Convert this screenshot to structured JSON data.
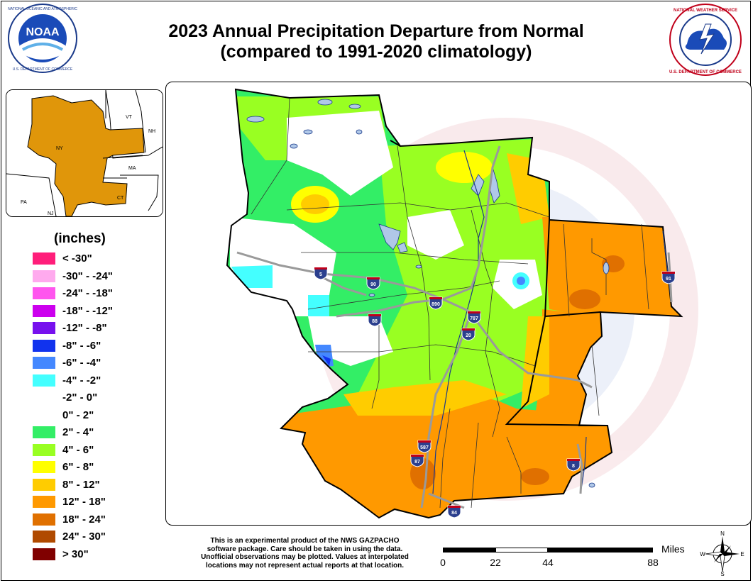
{
  "title": {
    "line1": "2023 Annual Precipitation Departure from Normal",
    "line2": "(compared to 1991-2020 climatology)"
  },
  "logos": {
    "noaa": {
      "text": "NOAA",
      "ring_text": "NATIONAL OCEANIC AND ATMOSPHERIC ADMINISTRATION · U.S. DEPARTMENT OF COMMERCE"
    },
    "nws": {
      "ring_text": "NATIONAL WEATHER SERVICE · U.S. DEPARTMENT OF COMMERCE"
    }
  },
  "inset": {
    "state_labels": {
      "ny": "NY",
      "vt": "VT",
      "nh": "NH",
      "ma": "MA",
      "ct": "CT",
      "pa": "PA",
      "nj": "NJ"
    },
    "highlight_color": "#e0960a"
  },
  "legend": {
    "title": "(inches)",
    "items": [
      {
        "label": "< -30\"",
        "color": "#ff1e7a"
      },
      {
        "label": "-30\" - -24\"",
        "color": "#ffaaee"
      },
      {
        "label": "-24\" - -18\"",
        "color": "#ff55ee"
      },
      {
        "label": "-18\" - -12\"",
        "color": "#cc00ee"
      },
      {
        "label": "-12\" - -8\"",
        "color": "#7711ee"
      },
      {
        "label": "-8\" - -6\"",
        "color": "#1133ee"
      },
      {
        "label": "-6\" - -4\"",
        "color": "#4488ff"
      },
      {
        "label": "-4\" - -2\"",
        "color": "#44ffff"
      },
      {
        "label": "-2\" - 0\"",
        "color": "#ffffff"
      },
      {
        "label": "0\" - 2\"",
        "color": "#ffffff"
      },
      {
        "label": "2\" - 4\"",
        "color": "#33ee66"
      },
      {
        "label": "4\" - 6\"",
        "color": "#99ff22"
      },
      {
        "label": "6\" - 8\"",
        "color": "#ffff00"
      },
      {
        "label": "8\" - 12\"",
        "color": "#ffcc00"
      },
      {
        "label": "12\" - 18\"",
        "color": "#ff9900"
      },
      {
        "label": "18\" - 24\"",
        "color": "#e07000"
      },
      {
        "label": "24\" - 30\"",
        "color": "#b04a00"
      },
      {
        "label": "> 30\"",
        "color": "#800000"
      }
    ]
  },
  "map": {
    "interstates": [
      "5",
      "90",
      "890",
      "88",
      "787",
      "20",
      "91",
      "587",
      "87",
      "8",
      "84"
    ],
    "watermark": "NATIONAL WEATHER SERVICE · U.S. DEPARTMENT OF COMMERCE"
  },
  "disclaimer": {
    "lines": [
      "This is an experimental product of the NWS GAZPACHO",
      "software package. Care should be taken in using the data.",
      "Unofficial observations may be plotted. Values at interpolated",
      "locations may not represent actual reports at that location."
    ]
  },
  "scale": {
    "units": "Miles",
    "ticks": [
      "0",
      "22",
      "44",
      "88"
    ]
  },
  "compass": {
    "n": "N",
    "s": "S",
    "e": "E",
    "w": "W"
  }
}
